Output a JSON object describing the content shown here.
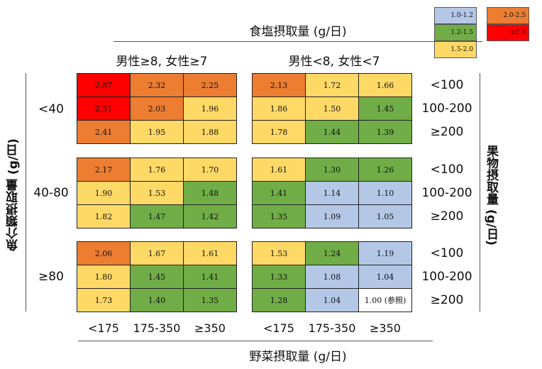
{
  "title_top": "食塩摂取量 (g/日)",
  "title_bottom": "野菜摂取量 (g/日)",
  "title_left": "魚介類摂取量 (g/日)",
  "title_right": "果物摂取量 (g/日)",
  "group_labels": [
    "男性≥8, 女性≥7",
    "男性<8, 女性<7"
  ],
  "fish_labels": [
    "<40",
    "40-80",
    "≥80"
  ],
  "fruit_labels": [
    "<100",
    "100-200",
    "≥200"
  ],
  "veg_labels": [
    "<175",
    "175-350",
    "≥350"
  ],
  "legend": [
    {
      "label": "1.0-1.2",
      "color": "#b4c7e7"
    },
    {
      "label": "1.2-1.5",
      "color": "#70ad47"
    },
    {
      "label": "1.5-2.0",
      "color": "#ffd966"
    },
    {
      "label": "2.0-2.5",
      "color": "#ed7d31"
    },
    {
      "label": "≥2.5",
      "color": "#ff0000"
    }
  ],
  "reference_label": "1.00 (参照)",
  "chart_data": {
    "type": "heatmap",
    "title": "",
    "xlabel": "野菜摂取量 (g/日)",
    "ylabel": "魚介類摂取量 (g/日)",
    "secondary_xlabel": "食塩摂取量 (g/日)",
    "secondary_ylabel": "果物摂取量 (g/日)",
    "panels": [
      {
        "salt": "男性≥8, 女性≥7",
        "columns": [
          "<175",
          "175-350",
          "≥350"
        ],
        "blocks": [
          {
            "fish": "<40",
            "rows": [
              {
                "fruit": "<100",
                "values": [
                  2.87,
                  2.32,
                  2.25
                ]
              },
              {
                "fruit": "100-200",
                "values": [
                  2.51,
                  2.03,
                  1.96
                ]
              },
              {
                "fruit": "≥200",
                "values": [
                  2.41,
                  1.95,
                  1.88
                ]
              }
            ]
          },
          {
            "fish": "40-80",
            "rows": [
              {
                "fruit": "<100",
                "values": [
                  2.17,
                  1.76,
                  1.7
                ]
              },
              {
                "fruit": "100-200",
                "values": [
                  1.9,
                  1.53,
                  1.48
                ]
              },
              {
                "fruit": "≥200",
                "values": [
                  1.82,
                  1.47,
                  1.42
                ]
              }
            ]
          },
          {
            "fish": "≥80",
            "rows": [
              {
                "fruit": "<100",
                "values": [
                  2.06,
                  1.67,
                  1.61
                ]
              },
              {
                "fruit": "100-200",
                "values": [
                  1.8,
                  1.45,
                  1.41
                ]
              },
              {
                "fruit": "≥200",
                "values": [
                  1.73,
                  1.4,
                  1.35
                ]
              }
            ]
          }
        ]
      },
      {
        "salt": "男性<8, 女性<7",
        "columns": [
          "<175",
          "175-350",
          "≥350"
        ],
        "blocks": [
          {
            "fish": "<40",
            "rows": [
              {
                "fruit": "<100",
                "values": [
                  2.13,
                  1.72,
                  1.66
                ]
              },
              {
                "fruit": "100-200",
                "values": [
                  1.86,
                  1.5,
                  1.45
                ]
              },
              {
                "fruit": "≥200",
                "values": [
                  1.78,
                  1.44,
                  1.39
                ]
              }
            ]
          },
          {
            "fish": "40-80",
            "rows": [
              {
                "fruit": "<100",
                "values": [
                  1.61,
                  1.3,
                  1.26
                ]
              },
              {
                "fruit": "100-200",
                "values": [
                  1.41,
                  1.14,
                  1.1
                ]
              },
              {
                "fruit": "≥200",
                "values": [
                  1.35,
                  1.09,
                  1.05
                ]
              }
            ]
          },
          {
            "fish": "≥80",
            "rows": [
              {
                "fruit": "<100",
                "values": [
                  1.53,
                  1.24,
                  1.19
                ]
              },
              {
                "fruit": "100-200",
                "values": [
                  1.33,
                  1.08,
                  1.04
                ]
              },
              {
                "fruit": "≥200",
                "values": [
                  1.28,
                  1.04,
                  1.0
                ]
              }
            ]
          }
        ]
      }
    ]
  }
}
